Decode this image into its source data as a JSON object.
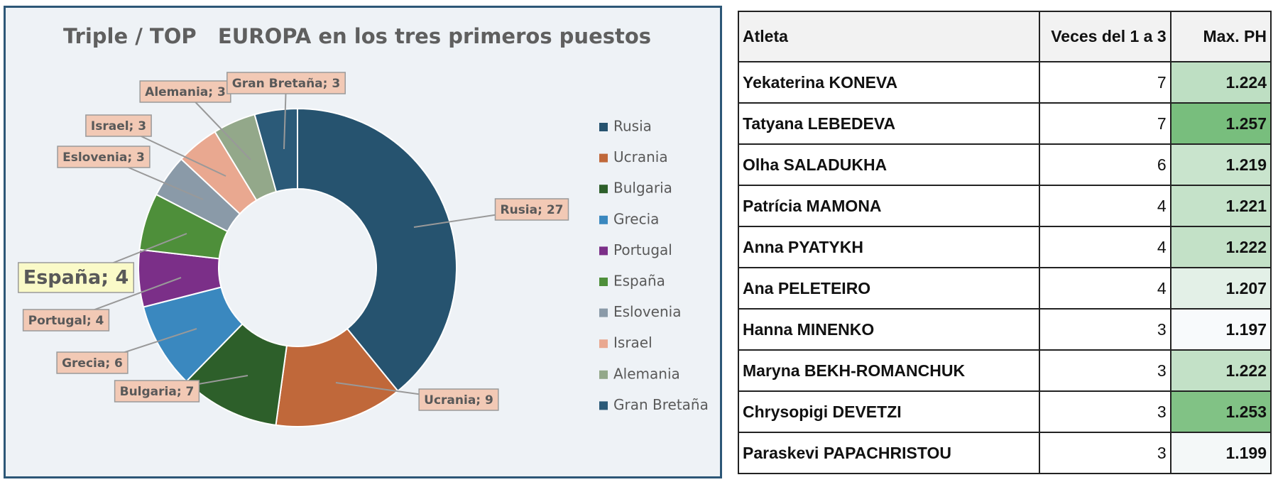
{
  "chart_data": {
    "type": "pie",
    "title": "Triple / TOP   EUROPA en los tres primeros puestos",
    "categories": [
      "Rusia",
      "Ucrania",
      "Bulgaria",
      "Grecia",
      "Portugal",
      "España",
      "Eslovenia",
      "Israel",
      "Alemania",
      "Gran Bretaña"
    ],
    "values": [
      27,
      9,
      7,
      6,
      4,
      4,
      3,
      3,
      3,
      3
    ],
    "value_labels": [
      "Rusia; 27",
      "Ucrania; 9",
      "Bulgaria; 7",
      "Grecia; 6",
      "Portugal; 4",
      "España; 4",
      "Eslovenia; 3",
      "Israel; 3",
      "Alemania; 3",
      "Gran Bretaña; 3"
    ],
    "colors": [
      "#26536f",
      "#c0683a",
      "#2d5f2a",
      "#3a88bf",
      "#7b2f88",
      "#4e8f3a",
      "#8a9aa8",
      "#e9a890",
      "#93a88a",
      "#2b5a78"
    ],
    "legend": "right"
  },
  "table": {
    "columns": [
      "Atleta",
      "Veces del 1 a 3",
      "Max. PH"
    ],
    "rows": [
      [
        "Yekaterina KONEVA",
        7,
        1.224
      ],
      [
        "Tatyana LEBEDEVA",
        7,
        1.257
      ],
      [
        "Olha SALADUKHA",
        6,
        1.219
      ],
      [
        "Patrícia MAMONA",
        4,
        1.221
      ],
      [
        "Anna PYATYKH",
        4,
        1.222
      ],
      [
        "Ana PELETEIRO",
        4,
        1.207
      ],
      [
        "Hanna MINENKO",
        3,
        1.197
      ],
      [
        "Maryna BEKH-ROMANCHUK",
        3,
        1.222
      ],
      [
        "Chrysopigi DEVETZI",
        3,
        1.253
      ],
      [
        "Paraskevi PAPACHRISTOU",
        3,
        1.199
      ]
    ]
  }
}
